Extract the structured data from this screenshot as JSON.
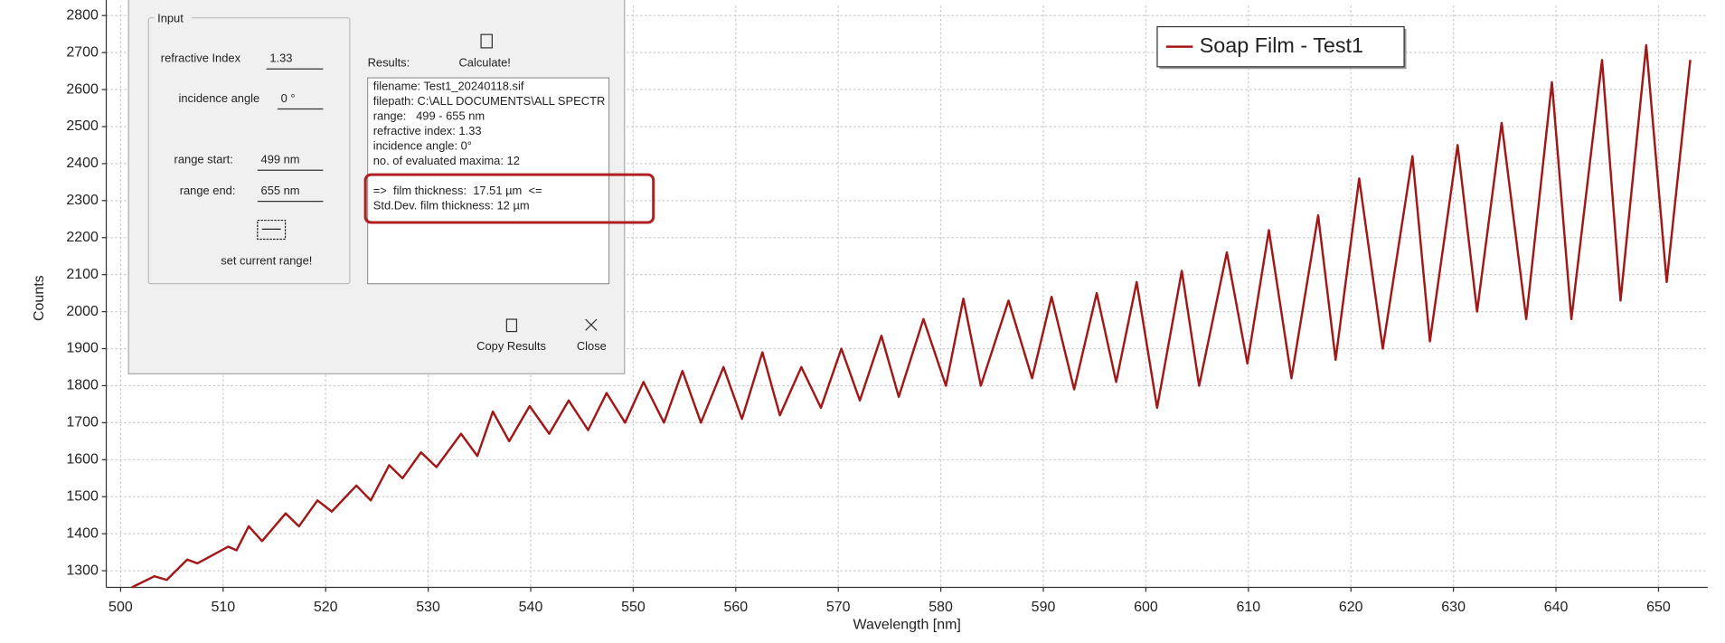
{
  "chart_data": {
    "type": "line",
    "xlabel": "Wavelength [nm]",
    "ylabel": "Counts",
    "xlim": [
      498.6,
      654.8
    ],
    "ylim": [
      1255,
      2827
    ],
    "xticks": [
      500,
      510,
      520,
      530,
      540,
      550,
      560,
      570,
      580,
      590,
      600,
      610,
      620,
      630,
      640,
      650
    ],
    "yticks": [
      1300,
      1400,
      1500,
      1600,
      1700,
      1800,
      1900,
      2000,
      2100,
      2200,
      2300,
      2400,
      2500,
      2600,
      2700,
      2800
    ],
    "grid": true,
    "legend": "upper right",
    "x": [
      501.1,
      503.3,
      504.5,
      506.5,
      507.5,
      510.5,
      511.3,
      512.5,
      513.8,
      516.1,
      517.4,
      519.2,
      520.6,
      523.0,
      524.4,
      526.2,
      527.5,
      529.3,
      530.8,
      533.2,
      534.8,
      536.3,
      537.9,
      539.9,
      541.8,
      543.7,
      545.6,
      547.4,
      549.2,
      551.0,
      553.0,
      554.8,
      556.6,
      558.8,
      560.6,
      562.6,
      564.3,
      566.4,
      568.3,
      570.3,
      572.1,
      574.2,
      575.9,
      578.3,
      580.5,
      582.2,
      583.9,
      586.6,
      588.9,
      590.8,
      593.0,
      595.2,
      597.1,
      599.1,
      601.1,
      603.5,
      605.2,
      607.9,
      609.9,
      612.0,
      614.2,
      616.8,
      618.5,
      620.8,
      623.1,
      626.0,
      627.7,
      630.4,
      632.3,
      634.7,
      637.1,
      639.6,
      641.5,
      644.5,
      646.3,
      648.8,
      650.8,
      653.1
    ],
    "series": [
      {
        "name": "Soap Film - Test1",
        "color": "#a01818",
        "values": [
          1255,
          1285,
          1275,
          1330,
          1320,
          1365,
          1355,
          1420,
          1380,
          1455,
          1420,
          1490,
          1460,
          1530,
          1490,
          1585,
          1550,
          1620,
          1580,
          1670,
          1610,
          1730,
          1650,
          1745,
          1670,
          1760,
          1680,
          1780,
          1700,
          1810,
          1700,
          1840,
          1700,
          1850,
          1710,
          1890,
          1720,
          1850,
          1740,
          1900,
          1760,
          1935,
          1770,
          1980,
          1800,
          2035,
          1800,
          2030,
          1820,
          2040,
          1790,
          2050,
          1810,
          2080,
          1740,
          2110,
          1800,
          2160,
          1860,
          2220,
          1820,
          2260,
          1870,
          2360,
          1900,
          2420,
          1920,
          2450,
          2000,
          2510,
          1980,
          2620,
          1980,
          2680,
          2030,
          2720,
          2080,
          2680
        ]
      }
    ]
  },
  "dialog": {
    "input": {
      "title": "Input",
      "refractive_index": {
        "label": "refractive Index",
        "value": "1.33"
      },
      "incidence_angle": {
        "label": "incidence angle",
        "value": "0 °"
      },
      "range_start": {
        "label": "range start:",
        "value": "499 nm"
      },
      "range_end": {
        "label": "range end:",
        "value": "655 nm"
      },
      "set_range": "set current range!"
    },
    "results_label": "Results:",
    "calculate": "Calculate!",
    "results": [
      "filename: Test1_20240118.sif",
      "filepath: C:\\ALL DOCUMENTS\\ALL SPECTR",
      "range:   499 - 655 nm",
      "refractive index: 1.33",
      "incidence angle: 0°",
      "no. of evaluated maxima: 12"
    ],
    "highlight": [
      "=>  film thickness:  17.51 µm  <=",
      "Std.Dev. film thickness: 12 µm"
    ],
    "copy_results": "Copy Results",
    "close": "Close"
  }
}
